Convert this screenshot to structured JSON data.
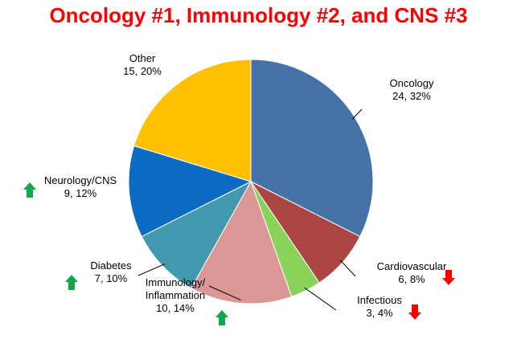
{
  "title": "Oncology #1, Immunology #2, and CNS #3",
  "chart_data": {
    "type": "pie",
    "title": "Oncology #1, Immunology #2, and CNS #3",
    "slices": [
      {
        "name": "Oncology",
        "count": 24,
        "percent": 32,
        "label": "24, 32%",
        "color": "#4572A7",
        "trend": ""
      },
      {
        "name": "Cardiovascular",
        "count": 6,
        "percent": 8,
        "label": "6, 8%",
        "color": "#AA4643",
        "trend": "down"
      },
      {
        "name": "Infectious",
        "count": 3,
        "percent": 4,
        "label": "3, 4%",
        "color": "#89D35B",
        "trend": "down"
      },
      {
        "name": "Immunology/\nInflammation",
        "count": 10,
        "percent": 14,
        "label": "10, 14%",
        "color": "#DB9796",
        "trend": "up"
      },
      {
        "name": "Diabetes",
        "count": 7,
        "percent": 10,
        "label": "7, 10%",
        "color": "#4198AF",
        "trend": "up"
      },
      {
        "name": "Neurology/CNS",
        "count": 9,
        "percent": 12,
        "label": "9, 12%",
        "color": "#0B6BC2",
        "trend": "up"
      },
      {
        "name": "Other",
        "count": 15,
        "percent": 20,
        "label": "15, 20%",
        "color": "#FFC000",
        "trend": ""
      }
    ],
    "colors": {
      "up": "#0EA84A",
      "down": "#FF0000"
    }
  }
}
